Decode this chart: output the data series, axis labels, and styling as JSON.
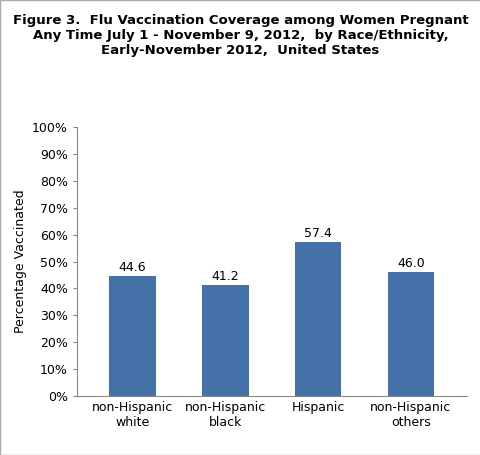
{
  "title": "Figure 3.  Flu Vaccination Coverage among Women Pregnant\nAny Time July 1 - November 9, 2012,  by Race/Ethnicity,\nEarly-November 2012,  United States",
  "categories": [
    "non-Hispanic\nwhite",
    "non-Hispanic\nblack",
    "Hispanic",
    "non-Hispanic\nothers"
  ],
  "values": [
    44.6,
    41.2,
    57.4,
    46.0
  ],
  "bar_color": "#4472a8",
  "ylabel": "Percentage Vaccinated",
  "ylim": [
    0,
    100
  ],
  "yticks": [
    0,
    10,
    20,
    30,
    40,
    50,
    60,
    70,
    80,
    90,
    100
  ],
  "ytick_labels": [
    "0%",
    "10%",
    "20%",
    "30%",
    "40%",
    "50%",
    "60%",
    "70%",
    "80%",
    "90%",
    "100%"
  ],
  "bar_width": 0.5,
  "title_fontsize": 9.5,
  "label_fontsize": 9,
  "tick_fontsize": 9,
  "value_fontsize": 9,
  "background_color": "#ffffff",
  "border_color": "#aaaaaa"
}
